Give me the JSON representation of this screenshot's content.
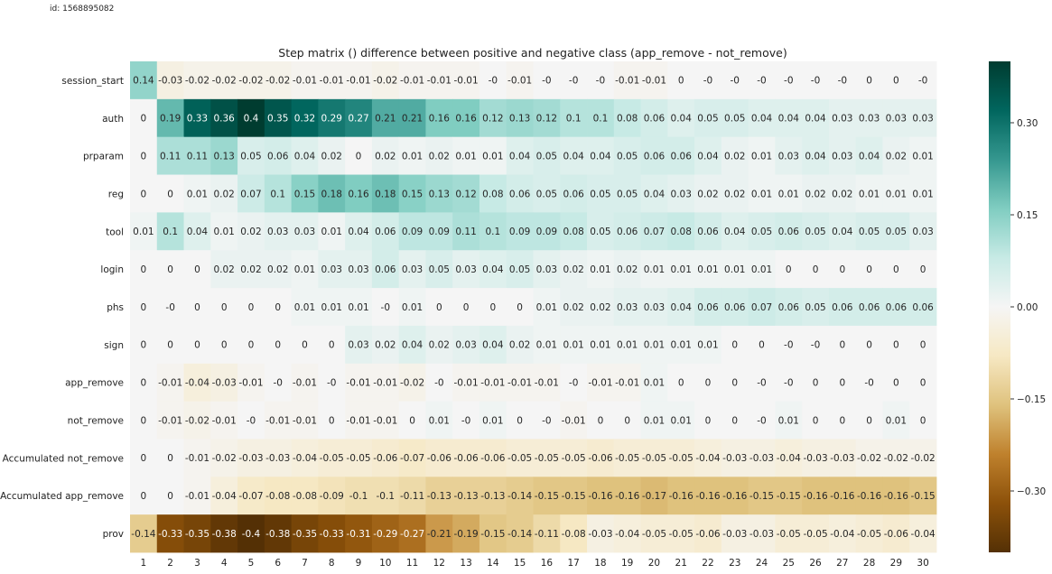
{
  "id_text": "id: 1568895082",
  "chart_data": {
    "type": "heatmap",
    "title": "Step matrix () difference between positive and negative class (app_remove - not_remove)",
    "rows": [
      "session_start",
      "auth",
      "prparam",
      "reg",
      "tool",
      "login",
      "phs",
      "sign",
      "app_remove",
      "not_remove",
      "Accumulated not_remove",
      "Accumulated app_remove",
      "prov"
    ],
    "columns": [
      "1",
      "2",
      "3",
      "4",
      "5",
      "6",
      "7",
      "8",
      "9",
      "10",
      "11",
      "12",
      "13",
      "14",
      "15",
      "16",
      "17",
      "18",
      "19",
      "20",
      "21",
      "22",
      "23",
      "24",
      "25",
      "26",
      "27",
      "28",
      "29",
      "30"
    ],
    "labels": [
      [
        "0.14",
        "-0.03",
        "-0.02",
        "-0.02",
        "-0.02",
        "-0.02",
        "-0.01",
        "-0.01",
        "-0.01",
        "-0.02",
        "-0.01",
        "-0.01",
        "-0.01",
        "-0",
        "-0.01",
        "-0",
        "-0",
        "-0",
        "-0.01",
        "-0.01",
        "0",
        "-0",
        "-0",
        "-0",
        "-0",
        "-0",
        "-0",
        "0",
        "0",
        "-0"
      ],
      [
        "0",
        "0.19",
        "0.33",
        "0.36",
        "0.4",
        "0.35",
        "0.32",
        "0.29",
        "0.27",
        "0.21",
        "0.21",
        "0.16",
        "0.16",
        "0.12",
        "0.13",
        "0.12",
        "0.1",
        "0.1",
        "0.08",
        "0.06",
        "0.04",
        "0.05",
        "0.05",
        "0.04",
        "0.04",
        "0.04",
        "0.03",
        "0.03",
        "0.03",
        "0.03"
      ],
      [
        "0",
        "0.11",
        "0.11",
        "0.13",
        "0.05",
        "0.06",
        "0.04",
        "0.02",
        "0",
        "0.02",
        "0.01",
        "0.02",
        "0.01",
        "0.01",
        "0.04",
        "0.05",
        "0.04",
        "0.04",
        "0.05",
        "0.06",
        "0.06",
        "0.04",
        "0.02",
        "0.01",
        "0.03",
        "0.04",
        "0.03",
        "0.04",
        "0.02",
        "0.01"
      ],
      [
        "0",
        "0",
        "0.01",
        "0.02",
        "0.07",
        "0.1",
        "0.15",
        "0.18",
        "0.16",
        "0.18",
        "0.15",
        "0.13",
        "0.12",
        "0.08",
        "0.06",
        "0.05",
        "0.06",
        "0.05",
        "0.05",
        "0.04",
        "0.03",
        "0.02",
        "0.02",
        "0.01",
        "0.01",
        "0.02",
        "0.02",
        "0.01",
        "0.01",
        "0.01"
      ],
      [
        "0.01",
        "0.1",
        "0.04",
        "0.01",
        "0.02",
        "0.03",
        "0.03",
        "0.01",
        "0.04",
        "0.06",
        "0.09",
        "0.09",
        "0.11",
        "0.1",
        "0.09",
        "0.09",
        "0.08",
        "0.05",
        "0.06",
        "0.07",
        "0.08",
        "0.06",
        "0.04",
        "0.05",
        "0.06",
        "0.05",
        "0.04",
        "0.05",
        "0.05",
        "0.03"
      ],
      [
        "0",
        "0",
        "0",
        "0.02",
        "0.02",
        "0.02",
        "0.01",
        "0.03",
        "0.03",
        "0.06",
        "0.03",
        "0.05",
        "0.03",
        "0.04",
        "0.05",
        "0.03",
        "0.02",
        "0.01",
        "0.02",
        "0.01",
        "0.01",
        "0.01",
        "0.01",
        "0.01",
        "0",
        "0",
        "0",
        "0",
        "0",
        "0"
      ],
      [
        "0",
        "-0",
        "0",
        "0",
        "0",
        "0",
        "0.01",
        "0.01",
        "0.01",
        "-0",
        "0.01",
        "0",
        "0",
        "0",
        "0",
        "0.01",
        "0.02",
        "0.02",
        "0.03",
        "0.03",
        "0.04",
        "0.06",
        "0.06",
        "0.07",
        "0.06",
        "0.05",
        "0.06",
        "0.06",
        "0.06",
        "0.06"
      ],
      [
        "0",
        "0",
        "0",
        "0",
        "0",
        "0",
        "0",
        "0",
        "0.03",
        "0.02",
        "0.04",
        "0.02",
        "0.03",
        "0.04",
        "0.02",
        "0.01",
        "0.01",
        "0.01",
        "0.01",
        "0.01",
        "0.01",
        "0.01",
        "0",
        "0",
        "-0",
        "-0",
        "0",
        "0",
        "0",
        "0"
      ],
      [
        "0",
        "-0.01",
        "-0.04",
        "-0.03",
        "-0.01",
        "-0",
        "-0.01",
        "-0",
        "-0.01",
        "-0.01",
        "-0.02",
        "-0",
        "-0.01",
        "-0.01",
        "-0.01",
        "-0.01",
        "-0",
        "-0.01",
        "-0.01",
        "0.01",
        "0",
        "0",
        "0",
        "-0",
        "-0",
        "0",
        "0",
        "-0",
        "0",
        "0"
      ],
      [
        "0",
        "-0.01",
        "-0.02",
        "-0.01",
        "-0",
        "-0.01",
        "-0.01",
        "0",
        "-0.01",
        "-0.01",
        "0",
        "0.01",
        "-0",
        "0.01",
        "0",
        "-0",
        "-0.01",
        "0",
        "0",
        "0.01",
        "0.01",
        "0",
        "0",
        "-0",
        "0.01",
        "0",
        "0",
        "0",
        "0.01",
        "0"
      ],
      [
        "0",
        "0",
        "-0.01",
        "-0.02",
        "-0.03",
        "-0.03",
        "-0.04",
        "-0.05",
        "-0.05",
        "-0.06",
        "-0.07",
        "-0.06",
        "-0.06",
        "-0.06",
        "-0.05",
        "-0.05",
        "-0.05",
        "-0.06",
        "-0.05",
        "-0.05",
        "-0.05",
        "-0.04",
        "-0.03",
        "-0.03",
        "-0.04",
        "-0.03",
        "-0.03",
        "-0.02",
        "-0.02",
        "-0.02"
      ],
      [
        "0",
        "0",
        "-0.01",
        "-0.04",
        "-0.07",
        "-0.08",
        "-0.08",
        "-0.09",
        "-0.1",
        "-0.1",
        "-0.11",
        "-0.13",
        "-0.13",
        "-0.13",
        "-0.14",
        "-0.15",
        "-0.15",
        "-0.16",
        "-0.16",
        "-0.17",
        "-0.16",
        "-0.16",
        "-0.16",
        "-0.15",
        "-0.15",
        "-0.16",
        "-0.16",
        "-0.16",
        "-0.16",
        "-0.15"
      ],
      [
        "-0.14",
        "-0.33",
        "-0.35",
        "-0.38",
        "-0.4",
        "-0.38",
        "-0.35",
        "-0.33",
        "-0.31",
        "-0.29",
        "-0.27",
        "-0.21",
        "-0.19",
        "-0.15",
        "-0.14",
        "-0.11",
        "-0.08",
        "-0.03",
        "-0.04",
        "-0.05",
        "-0.05",
        "-0.06",
        "-0.03",
        "-0.03",
        "-0.05",
        "-0.05",
        "-0.04",
        "-0.05",
        "-0.06",
        "-0.04"
      ]
    ],
    "colormap": "BrBG",
    "vmin": -0.4,
    "vmax": 0.4,
    "colorbar_ticks": [
      {
        "value": 0.3,
        "label": "0.30"
      },
      {
        "value": 0.15,
        "label": "0.15"
      },
      {
        "value": 0.0,
        "label": "0.00"
      },
      {
        "value": -0.15,
        "label": "−0.15"
      },
      {
        "value": -0.3,
        "label": "−0.30"
      }
    ]
  }
}
